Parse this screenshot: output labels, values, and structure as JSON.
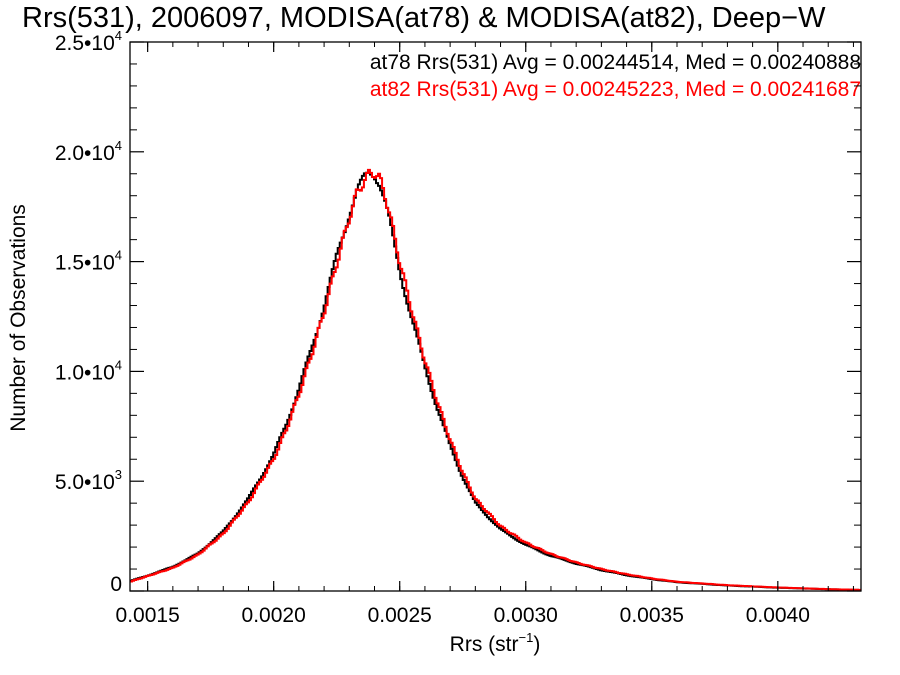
{
  "chart_data": {
    "type": "line",
    "title": "Rrs(531), 2006097, MODISA(at78) & MODISA(at82), Deep−W",
    "xlabel": "Rrs (str",
    "xlabel_sup": "−1",
    "xlabel_close": ")",
    "ylabel": "Number of Observations",
    "xlim": [
      0.00143,
      0.00433
    ],
    "ylim": [
      0,
      25000
    ],
    "x_ticks": [
      {
        "value": 0.0015,
        "label": "0.0015"
      },
      {
        "value": 0.002,
        "label": "0.0020"
      },
      {
        "value": 0.0025,
        "label": "0.0025"
      },
      {
        "value": 0.003,
        "label": "0.0030"
      },
      {
        "value": 0.0035,
        "label": "0.0035"
      },
      {
        "value": 0.004,
        "label": "0.0040"
      }
    ],
    "y_ticks": [
      {
        "value": 0,
        "mant": "0",
        "exp": ""
      },
      {
        "value": 5000,
        "mant": "5.0•10",
        "exp": "3"
      },
      {
        "value": 10000,
        "mant": "1.0•10",
        "exp": "4"
      },
      {
        "value": 15000,
        "mant": "1.5•10",
        "exp": "4"
      },
      {
        "value": 20000,
        "mant": "2.0•10",
        "exp": "4"
      },
      {
        "value": 25000,
        "mant": "2.5•10",
        "exp": "4"
      }
    ],
    "annotations": [
      {
        "text": "at78 Rrs(531) Avg = 0.00244514, Med = 0.00240888",
        "color": "#000000"
      },
      {
        "text": "at82 Rrs(531) Avg = 0.00245223, Med = 0.00241687",
        "color": "#ff0000"
      }
    ],
    "series": [
      {
        "color": "#000000",
        "step": true,
        "x": [
          0.00143,
          0.0015,
          0.0016,
          0.0017,
          0.0018,
          0.0019,
          0.002,
          0.00205,
          0.0021,
          0.00215,
          0.0022,
          0.00225,
          0.0023,
          0.00233,
          0.00236,
          0.00238,
          0.0024,
          0.00242,
          0.00244,
          0.00246,
          0.0025,
          0.00255,
          0.0026,
          0.00265,
          0.0027,
          0.00275,
          0.0028,
          0.0029,
          0.003,
          0.0031,
          0.0032,
          0.0033,
          0.0034,
          0.0035,
          0.0036,
          0.0038,
          0.004,
          0.0042,
          0.00433
        ],
        "y": [
          450,
          700,
          1100,
          1700,
          2700,
          4200,
          6200,
          7600,
          9200,
          11000,
          13000,
          15200,
          17200,
          18200,
          18800,
          19050,
          19000,
          18600,
          17800,
          16800,
          14600,
          12300,
          10200,
          8300,
          6600,
          5200,
          4000,
          2800,
          2100,
          1600,
          1250,
          950,
          720,
          540,
          400,
          250,
          150,
          80,
          45
        ]
      },
      {
        "color": "#ff0000",
        "step": true,
        "x": [
          0.00143,
          0.0015,
          0.0016,
          0.0017,
          0.0018,
          0.0019,
          0.002,
          0.00205,
          0.0021,
          0.00215,
          0.0022,
          0.00225,
          0.0023,
          0.00233,
          0.00236,
          0.00238,
          0.0024,
          0.00242,
          0.00244,
          0.00246,
          0.0025,
          0.00255,
          0.0026,
          0.00265,
          0.0027,
          0.00275,
          0.0028,
          0.0029,
          0.003,
          0.0031,
          0.0032,
          0.0033,
          0.0034,
          0.0035,
          0.0036,
          0.0038,
          0.004,
          0.0042,
          0.00433
        ],
        "y": [
          420,
          680,
          1050,
          1650,
          2600,
          4050,
          6000,
          7350,
          8950,
          10750,
          12700,
          14900,
          17000,
          18100,
          18700,
          19000,
          19050,
          18800,
          18100,
          17200,
          15000,
          12700,
          10500,
          8600,
          6900,
          5400,
          4200,
          2950,
          2200,
          1680,
          1300,
          1000,
          760,
          570,
          420,
          265,
          160,
          85,
          50
        ]
      }
    ]
  }
}
